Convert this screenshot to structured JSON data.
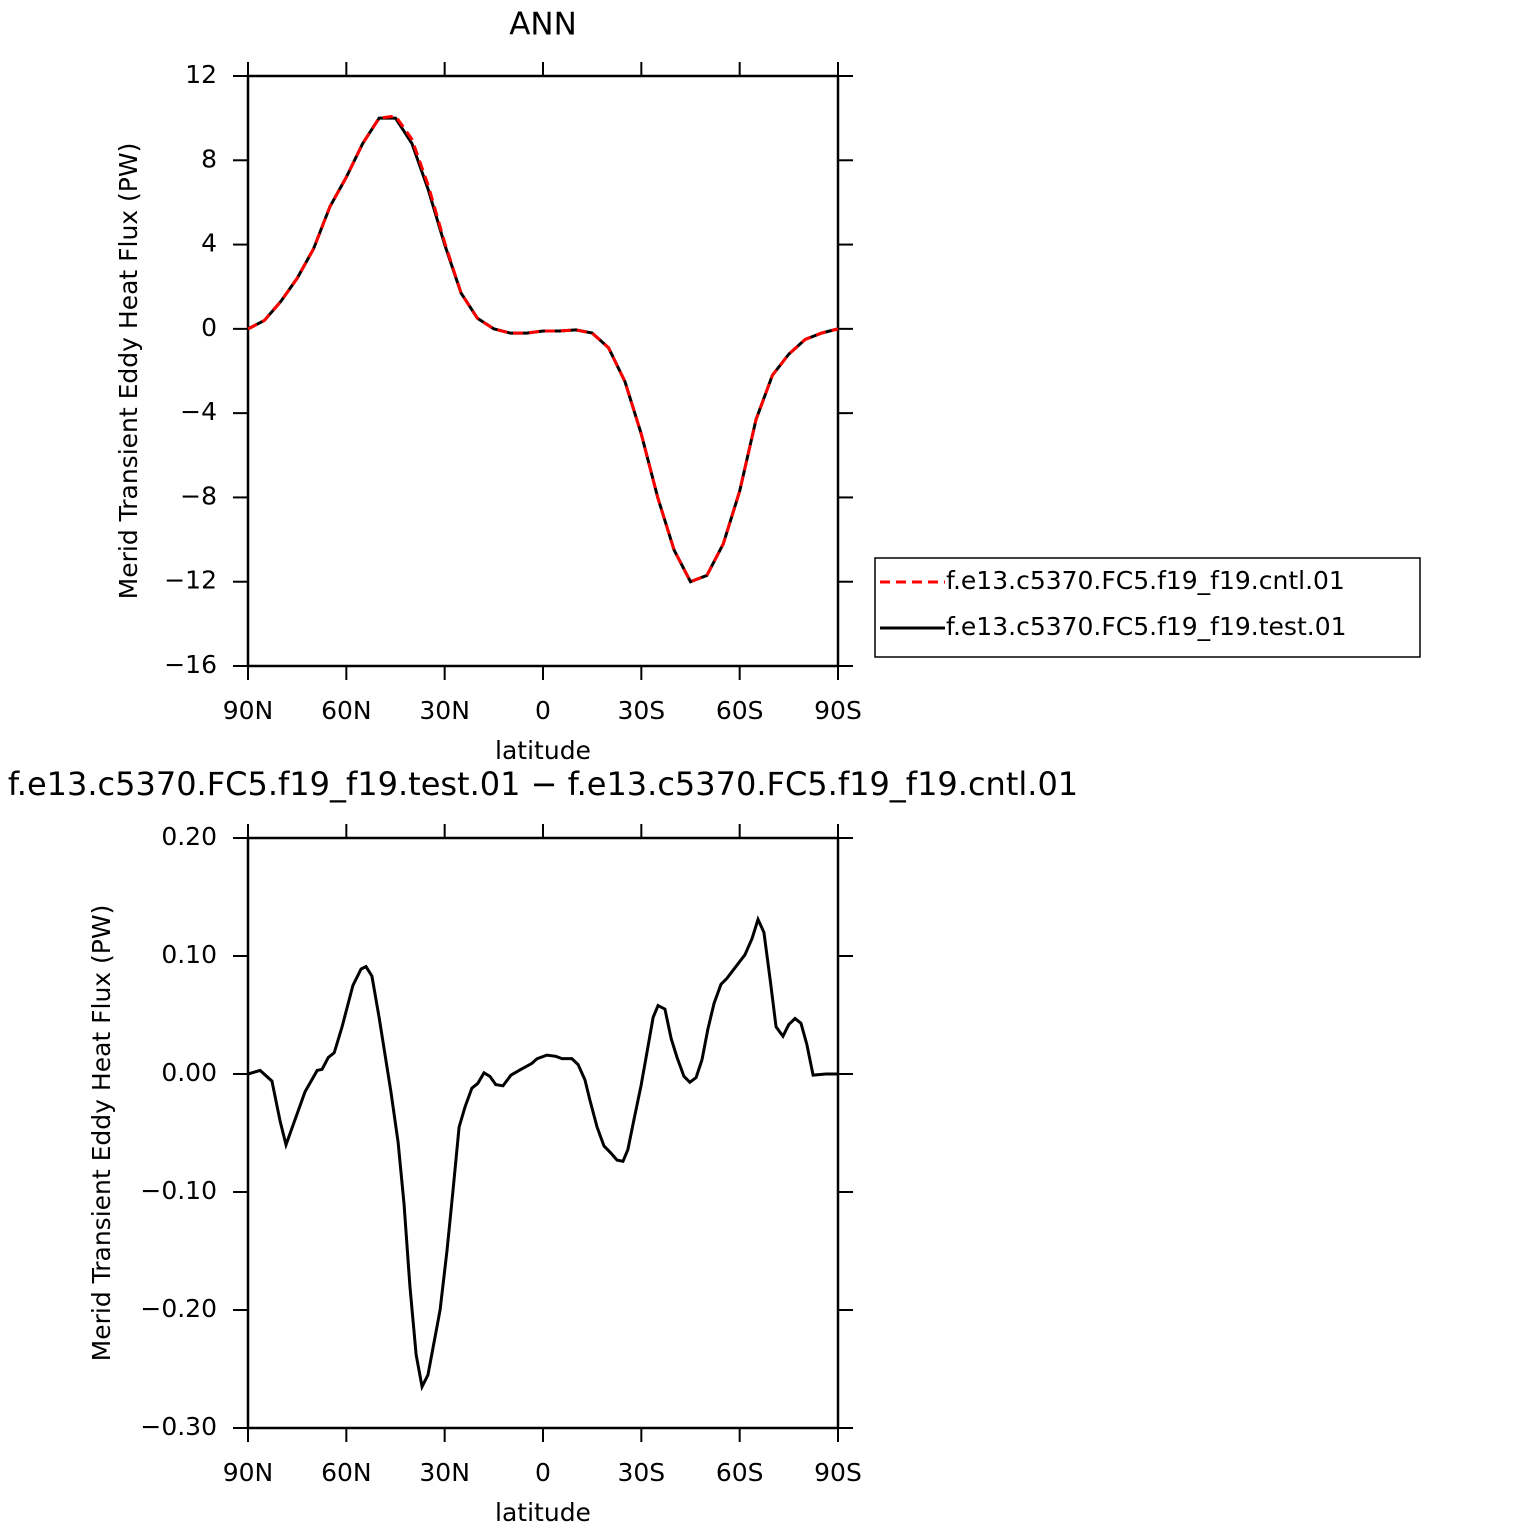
{
  "chart_data": [
    {
      "type": "line",
      "title": "ANN",
      "xlabel": "latitude",
      "ylabel": "Merid Transient Eddy Heat Flux (PW)",
      "x": [
        90,
        85,
        80,
        75,
        70,
        65,
        60,
        55,
        50,
        45,
        40,
        35,
        30,
        25,
        20,
        15,
        10,
        5,
        0,
        -5,
        -10,
        -15,
        -20,
        -25,
        -30,
        -35,
        -40,
        -45,
        -50,
        -55,
        -60,
        -65,
        -70,
        -75,
        -80,
        -85,
        -90
      ],
      "series": [
        {
          "name": "f.e13.c5370.FC5.f19_f19.cntl.01",
          "color": "#ff0000",
          "dash": "dashed",
          "values": [
            0,
            0.4,
            1.3,
            2.4,
            3.8,
            5.8,
            7.2,
            8.8,
            10.0,
            10.1,
            9.0,
            6.8,
            4.1,
            1.7,
            0.5,
            0.0,
            -0.2,
            -0.2,
            -0.1,
            -0.1,
            -0.05,
            -0.2,
            -0.9,
            -2.5,
            -5.0,
            -8.0,
            -10.5,
            -12.0,
            -11.7,
            -10.2,
            -7.7,
            -4.3,
            -2.2,
            -1.2,
            -0.5,
            -0.2,
            0
          ]
        },
        {
          "name": "f.e13.c5370.FC5.f19_f19.test.01",
          "color": "#000000",
          "dash": "solid",
          "values": [
            0,
            0.4,
            1.3,
            2.4,
            3.8,
            5.8,
            7.2,
            8.8,
            10.0,
            10.0,
            8.8,
            6.6,
            4.0,
            1.7,
            0.5,
            0.0,
            -0.2,
            -0.2,
            -0.1,
            -0.1,
            -0.05,
            -0.2,
            -0.9,
            -2.5,
            -5.0,
            -8.0,
            -10.5,
            -12.0,
            -11.7,
            -10.2,
            -7.7,
            -4.3,
            -2.2,
            -1.2,
            -0.5,
            -0.2,
            0
          ]
        }
      ],
      "xlim": [
        90,
        -90
      ],
      "xticks": [
        {
          "value": 90,
          "label": "90N"
        },
        {
          "value": 60,
          "label": "60N"
        },
        {
          "value": 30,
          "label": "30N"
        },
        0,
        {
          "value": -30,
          "label": "30S"
        },
        {
          "value": -60,
          "label": "60S"
        },
        {
          "value": -90,
          "label": "90S"
        }
      ],
      "ylim": [
        -16,
        12
      ],
      "yticks": [
        {
          "value": -16,
          "label": "−16"
        },
        {
          "value": -12,
          "label": "−12"
        },
        {
          "value": -8,
          "label": "−8"
        },
        {
          "value": -4,
          "label": "−4"
        },
        0,
        4,
        8,
        12
      ],
      "legend": "right"
    },
    {
      "type": "line",
      "title": "f.e13.c5370.FC5.f19_f19.test.01 − f.e13.c5370.FC5.f19_f19.cntl.01",
      "xlabel": "latitude",
      "ylabel": "Merid Transient Eddy Heat Flux (PW)",
      "x": [
        90,
        86.3,
        82.7,
        80.2,
        78.4,
        72.6,
        68.9,
        67.4,
        65.5,
        63.7,
        61.3,
        58.0,
        55.5,
        54.0,
        52.2,
        50.0,
        46.4,
        44.2,
        42.4,
        40.6,
        38.7,
        36.9,
        35.1,
        31.4,
        29.3,
        27.5,
        25.6,
        23.8,
        21.7,
        19.9,
        18.0,
        16.2,
        14.4,
        12.2,
        9.8,
        6.7,
        3.4,
        1.8,
        -1.2,
        -3.9,
        -5.8,
        -8.8,
        -10.7,
        -12.8,
        -14.3,
        -16.5,
        -18.6,
        -20.7,
        -22.6,
        -24.4,
        -25.9,
        -27.8,
        -29.9,
        -31.7,
        -33.6,
        -35.1,
        -37.2,
        -39.1,
        -40.9,
        -43.0,
        -44.8,
        -46.7,
        -48.5,
        -50.3,
        -52.2,
        -54.3,
        -56.1,
        -58.0,
        -61.6,
        -63.8,
        -65.6,
        -67.4,
        -69.3,
        -71.1,
        -73.2,
        -75.0,
        -76.9,
        -78.7,
        -80.5,
        -82.4,
        -86.3,
        -90
      ],
      "color": "#000000",
      "values": [
        0.0,
        0.003,
        -0.006,
        -0.04,
        -0.06,
        -0.015,
        0.003,
        0.004,
        0.014,
        0.018,
        0.04,
        0.075,
        0.089,
        0.091,
        0.083,
        0.048,
        -0.015,
        -0.058,
        -0.11,
        -0.18,
        -0.238,
        -0.265,
        -0.255,
        -0.2,
        -0.15,
        -0.1,
        -0.045,
        -0.028,
        -0.012,
        -0.008,
        0.001,
        -0.002,
        -0.009,
        -0.01,
        -0.001,
        0.004,
        0.009,
        0.013,
        0.016,
        0.015,
        0.013,
        0.013,
        0.008,
        -0.005,
        -0.022,
        -0.045,
        -0.061,
        -0.067,
        -0.073,
        -0.074,
        -0.064,
        -0.038,
        -0.01,
        0.018,
        0.048,
        0.058,
        0.055,
        0.03,
        0.014,
        -0.002,
        -0.007,
        -0.003,
        0.012,
        0.038,
        0.06,
        0.076,
        0.081,
        0.088,
        0.101,
        0.115,
        0.131,
        0.12,
        0.08,
        0.04,
        0.032,
        0.042,
        0.047,
        0.043,
        0.025,
        -0.001,
        0.0,
        0.0
      ],
      "xlim": [
        90,
        -90
      ],
      "xticks": [
        {
          "value": 90,
          "label": "90N"
        },
        {
          "value": 60,
          "label": "60N"
        },
        {
          "value": 30,
          "label": "30N"
        },
        0,
        {
          "value": -30,
          "label": "30S"
        },
        {
          "value": -60,
          "label": "60S"
        },
        {
          "value": -90,
          "label": "90S"
        }
      ],
      "ylim": [
        -0.3,
        0.2
      ],
      "yticks": [
        {
          "value": -0.3,
          "label": "−0.30"
        },
        {
          "value": -0.2,
          "label": "−0.20"
        },
        {
          "value": -0.1,
          "label": "−0.10"
        },
        {
          "value": 0,
          "label": "0.00"
        },
        {
          "value": 0.1,
          "label": "0.10"
        },
        {
          "value": 0.2,
          "label": "0.20"
        }
      ]
    }
  ]
}
